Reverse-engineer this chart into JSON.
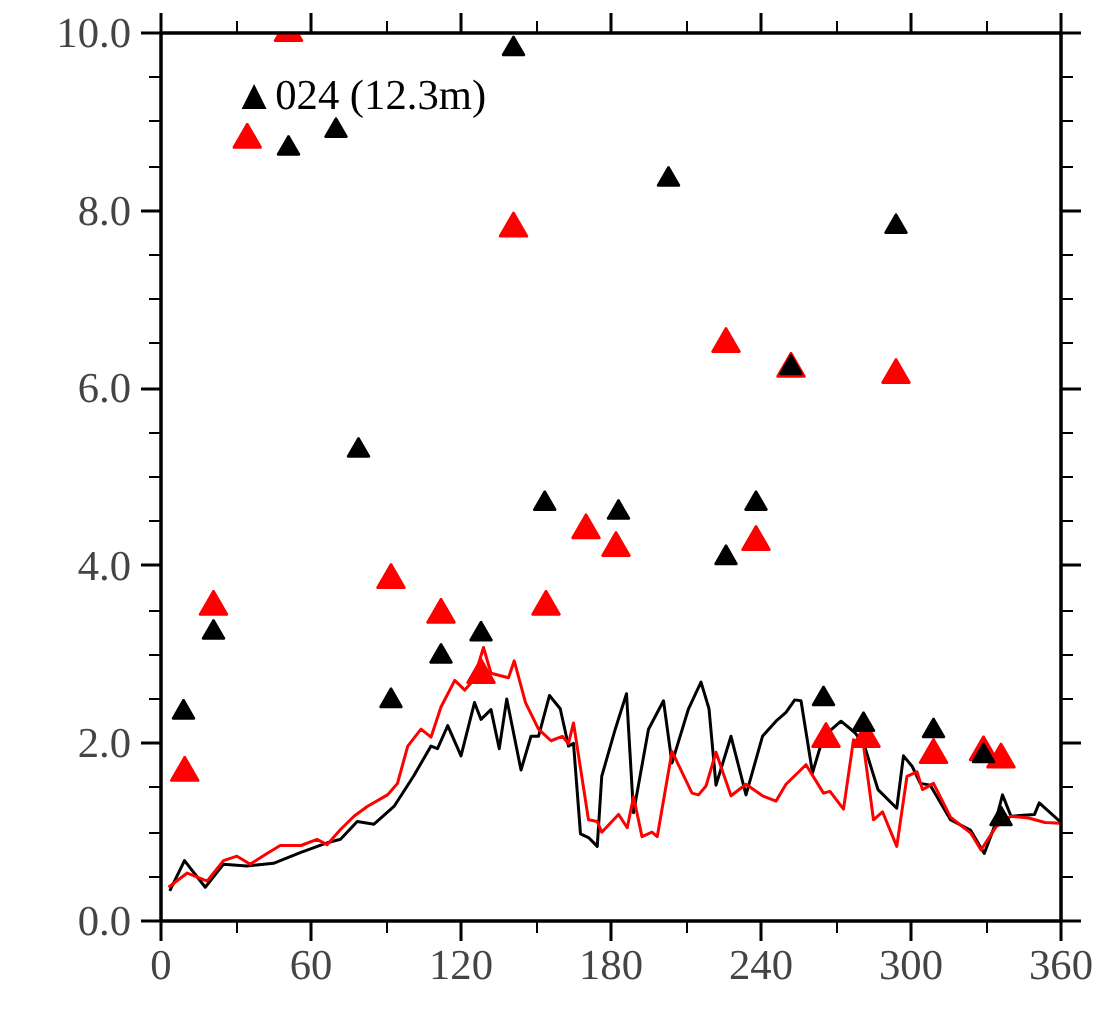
{
  "chart_data": {
    "type": "scatter",
    "xlim": [
      0,
      360
    ],
    "ylim": [
      0,
      10
    ],
    "xticks": [
      0,
      60,
      120,
      180,
      240,
      300,
      360
    ],
    "yticks": [
      {
        "value": 0,
        "label": "0.0"
      },
      {
        "value": 2,
        "label": "2.0"
      },
      {
        "value": 4,
        "label": "4.0"
      },
      {
        "value": 6,
        "label": "6.0"
      },
      {
        "value": 8,
        "label": "8.0"
      },
      {
        "value": 10,
        "label": "10.0"
      }
    ],
    "annotations": [
      "▲024 (12.3m)"
    ],
    "grid": false,
    "series": [
      {
        "type": "line",
        "color": "#000000",
        "marker": "none",
        "x": [
          3.5,
          9.4,
          17.7,
          25,
          34.3,
          45,
          55.7,
          66.4,
          71.8,
          78.5,
          85.2,
          93.2,
          101,
          108,
          110.6,
          114.7,
          120,
          125.4,
          128,
          132,
          135.3,
          138.3,
          144,
          148,
          151,
          155.4,
          159.7,
          163,
          165,
          167.8,
          171,
          174.5,
          176.3,
          181.7,
          186.2,
          189,
          195,
          201,
          204.4,
          211,
          216,
          219.2,
          222,
          228,
          234,
          240.6,
          246,
          250,
          253.5,
          256,
          260.6,
          265,
          272,
          277.6,
          281.4,
          286.8,
          294.3,
          297,
          300.5,
          303.7,
          307.7,
          315.8,
          323.9,
          329.3,
          333.3,
          336.6,
          340,
          349.4,
          351.3,
          360
        ],
        "values": [
          0.34,
          0.68,
          0.38,
          0.64,
          0.62,
          0.65,
          0.77,
          0.88,
          0.92,
          1.12,
          1.09,
          1.29,
          1.63,
          1.97,
          1.94,
          2.2,
          1.86,
          2.46,
          2.27,
          2.38,
          1.94,
          2.5,
          1.7,
          2.08,
          2.08,
          2.54,
          2.39,
          1.97,
          2.0,
          0.98,
          0.94,
          0.84,
          1.63,
          2.16,
          2.56,
          1.22,
          2.16,
          2.48,
          1.78,
          2.39,
          2.69,
          2.39,
          1.53,
          2.08,
          1.42,
          2.08,
          2.25,
          2.35,
          2.49,
          2.48,
          1.67,
          2.08,
          2.25,
          2.12,
          1.97,
          1.48,
          1.27,
          1.86,
          1.74,
          1.55,
          1.53,
          1.14,
          1.02,
          0.76,
          1.06,
          1.42,
          1.18,
          1.2,
          1.33,
          1.11
        ]
      },
      {
        "type": "line",
        "color": "#ff0000",
        "marker": "none",
        "x": [
          3,
          10.5,
          18.5,
          25,
          30.4,
          35.7,
          42.4,
          47.7,
          56,
          62.4,
          66.4,
          71.8,
          77.2,
          82.5,
          90.6,
          94.6,
          98.7,
          104,
          108,
          112,
          117.5,
          121.5,
          125,
          129,
          132,
          139,
          141.3,
          145.8,
          151,
          156,
          160.5,
          163,
          165,
          171,
          174.5,
          176.3,
          183,
          186.5,
          189,
          192.4,
          196.4,
          198.5,
          204.4,
          212.4,
          215,
          218,
          222,
          228,
          234,
          240.6,
          246,
          250,
          258,
          265,
          267.6,
          273,
          277,
          281,
          285,
          288.6,
          294.3,
          298.4,
          302.4,
          304.6,
          309,
          315.8,
          323.9,
          328,
          334,
          340,
          347,
          353.6,
          360
        ],
        "values": [
          0.38,
          0.54,
          0.45,
          0.68,
          0.73,
          0.64,
          0.76,
          0.85,
          0.85,
          0.92,
          0.86,
          1.03,
          1.18,
          1.29,
          1.42,
          1.55,
          1.97,
          2.16,
          2.07,
          2.41,
          2.71,
          2.6,
          2.71,
          3.08,
          2.79,
          2.74,
          2.93,
          2.46,
          2.16,
          2.03,
          2.08,
          2.0,
          2.23,
          1.14,
          1.12,
          1.0,
          1.2,
          1.05,
          1.4,
          0.95,
          1.0,
          0.95,
          1.91,
          1.44,
          1.42,
          1.52,
          1.9,
          1.41,
          1.54,
          1.41,
          1.35,
          1.54,
          1.76,
          1.44,
          1.46,
          1.26,
          2.04,
          1.98,
          1.14,
          1.23,
          0.84,
          1.63,
          1.68,
          1.48,
          1.55,
          1.17,
          0.99,
          0.8,
          1.06,
          1.18,
          1.16,
          1.11,
          1.1
        ]
      },
      {
        "color": "#ff0000",
        "marker": "triangle",
        "x": [
          9.5,
          21,
          34.5,
          51,
          92,
          112,
          128,
          141,
          154,
          170,
          182,
          226,
          238,
          252,
          266,
          282,
          294,
          309,
          329,
          336
        ],
        "values": [
          1.67,
          3.54,
          8.8,
          10.0,
          3.84,
          3.45,
          2.77,
          7.8,
          3.54,
          4.4,
          4.2,
          6.5,
          4.27,
          6.22,
          2.05,
          2.05,
          6.15,
          1.87,
          1.9,
          1.82
        ]
      },
      {
        "color": "#000000",
        "marker": "triangle",
        "x": [
          9,
          21,
          51,
          70,
          79,
          92,
          112,
          128,
          141,
          153.5,
          183,
          203,
          226,
          238,
          252,
          265,
          281,
          294,
          309,
          329,
          336
        ],
        "values": [
          2.35,
          3.25,
          8.7,
          8.9,
          5.3,
          2.48,
          2.98,
          3.23,
          9.82,
          4.7,
          4.6,
          8.35,
          4.09,
          4.7,
          6.23,
          2.5,
          2.21,
          7.82,
          2.14,
          1.86,
          1.15
        ]
      }
    ]
  }
}
